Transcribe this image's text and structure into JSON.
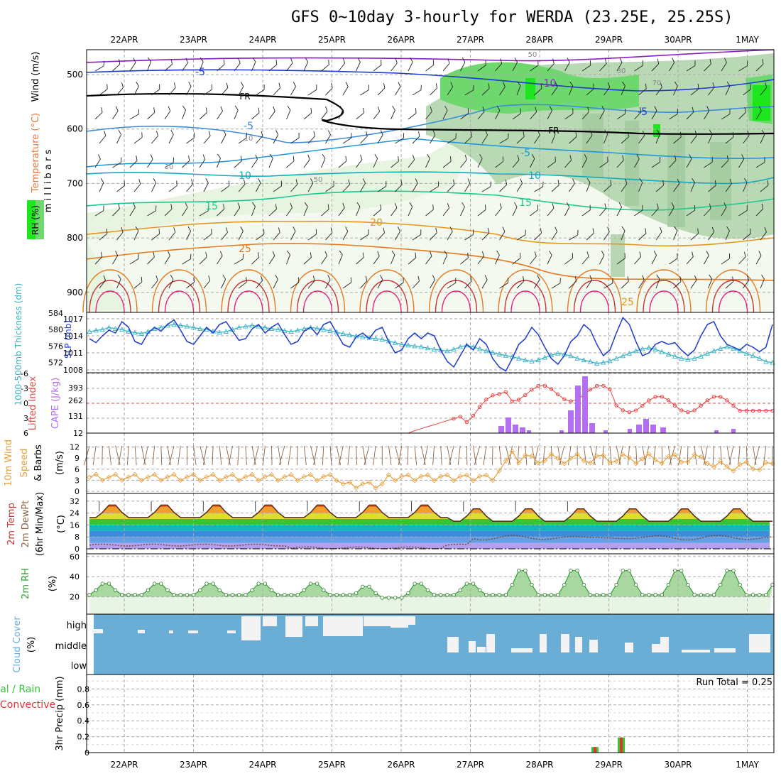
{
  "title": "GFS 0~10day 3-hourly for WERDA (23.25E, 25.25S)",
  "colors": {
    "grid": "#aaaaaa",
    "rh_light": "#e6f4e0",
    "rh_mid": "#b9d9b4",
    "rh_green": "#6ed86e",
    "rh_bright": "#1ee61e",
    "slp": "#1e3ccd",
    "thickness": "#3cb4c8",
    "cape": "#b46ef0",
    "lifted": "#e64646",
    "wind_speed": "#e6a03c",
    "wind_barb": "#8c6446",
    "rh2m": "#32a032",
    "cloud": "#6aaed6",
    "precip_total": "#32c832",
    "precip_conv": "#e63232"
  },
  "x_axis": {
    "date_labels": [
      "22APR",
      "23APR",
      "24APR",
      "25APR",
      "26APR",
      "27APR",
      "28APR",
      "29APR",
      "30APR",
      "1MAY"
    ]
  },
  "panels": {
    "upper_air": {
      "ylabel_wind": "Wind (m/s)",
      "ylabel_temp": "Temperature (°C)",
      "ylabel_rh": "RH (%)",
      "ylabel_mb": "m i l l i b a r s",
      "y_ticks": [
        "500",
        "600",
        "700",
        "800",
        "900"
      ],
      "temp_labels": [
        "-5",
        "-5",
        "-5",
        "-5",
        "10",
        "15",
        "15",
        "20",
        "25",
        "-10",
        "10",
        "25"
      ],
      "freezing_label": "FR",
      "rh_labels": [
        "10",
        "30",
        "50",
        "50",
        "30",
        "70"
      ]
    },
    "slp_thickness": {
      "ylabel_thickness": "1000-500mb Thickness (dm)",
      "ylabel_slp": "SLP (mb)",
      "thickness_ticks": [
        "584",
        "580",
        "576",
        "572"
      ],
      "slp_ticks": [
        "1017",
        "1014",
        "1011",
        "1008"
      ]
    },
    "cape_li": {
      "ylabel_li": "Lifted Index",
      "ylabel_cape": "CAPE (J/kg)",
      "li_ticks": [
        "-6",
        "-3",
        "0",
        "3",
        "6"
      ],
      "cape_ticks": [
        "393",
        "262",
        "131",
        "12"
      ]
    },
    "wind10m": {
      "ylabel_a": "10m Wind",
      "ylabel_b": "Speed",
      "ylabel_c": "& Barbs",
      "ylabel_units": "(m/s)",
      "ticks": [
        "12",
        "9",
        "6",
        "3",
        "0"
      ]
    },
    "temp2m": {
      "ylabel_a": "2m Temp",
      "ylabel_b": "2m DewPt",
      "ylabel_c": "(6hr Min/Max)",
      "ylabel_units": "(°C)",
      "ticks": [
        "32",
        "24",
        "16",
        "8",
        "0"
      ]
    },
    "rh2m": {
      "ylabel": "2m RH",
      "ylabel_units": "(%)",
      "ticks": [
        "60",
        "40",
        "20"
      ]
    },
    "cloud": {
      "ylabel": "Cloud Cover",
      "ylabel_units": "(%)",
      "levels": [
        "high",
        "middle",
        "low"
      ]
    },
    "precip": {
      "ylabel_a": "Total / Rain",
      "ylabel_b": "Convective",
      "ylabel_c": "3hr Precip (mm)",
      "ticks": [
        "0.8",
        "0.6",
        "0.4",
        "0.2",
        "0"
      ],
      "run_total": "Run Total = 0.25"
    }
  },
  "chart_data": {
    "type": "line",
    "x_start": "2022-04-21T12Z",
    "x_step_hours": 3,
    "slp_mb": [
      1013.5,
      1012.8,
      1014,
      1015,
      1014.5,
      1016.5,
      1015.5,
      1013,
      1012.5,
      1014.5,
      1015.5,
      1014.8,
      1016,
      1016.8,
      1015,
      1013,
      1012.5,
      1014,
      1015.5,
      1014.5,
      1016,
      1016.5,
      1014.8,
      1013.2,
      1013.5,
      1015.2,
      1016,
      1014.5,
      1015.5,
      1016.2,
      1014.2,
      1012.5,
      1013,
      1014.8,
      1015.5,
      1014.2,
      1016,
      1016.5,
      1014.5,
      1012.5,
      1012,
      1013.8,
      1014.5,
      1013.5,
      1015,
      1015.5,
      1013,
      1011,
      1011.5,
      1013.5,
      1014.5,
      1013.5,
      1014.5,
      1014,
      1011.5,
      1009.5,
      1008.5,
      1010.5,
      1012.5,
      1011.5,
      1013.5,
      1012.5,
      1010,
      1008.5,
      1007.8,
      1010,
      1012.5,
      1013.5,
      1015.5,
      1014.2,
      1012,
      1010,
      1009,
      1010.5,
      1013,
      1014,
      1016,
      1015,
      1012.5,
      1010.5,
      1011.5,
      1014.5,
      1017.2,
      1016,
      1013,
      1010.5,
      1011,
      1012.5,
      1013,
      1012.5,
      1012.8,
      1011.5,
      1010.5,
      1011.5,
      1014,
      1016,
      1016.5,
      1014,
      1012.5,
      1012,
      1011.5,
      1012.5,
      1012,
      1011.2,
      1012,
      1016
    ],
    "thickness_dm": [
      579.5,
      579.8,
      580,
      580.5,
      580.2,
      580,
      579.5,
      579.3,
      579,
      579.5,
      580.2,
      580.5,
      581,
      581.2,
      581,
      580.8,
      580.5,
      580.2,
      580,
      579.6,
      579.3,
      579.5,
      580,
      580.5,
      580.8,
      581,
      580.8,
      580.5,
      580.2,
      580,
      579.7,
      579.5,
      579.8,
      580.2,
      580.5,
      580.3,
      580,
      579.7,
      579.4,
      579,
      578.7,
      578.4,
      578.2,
      578,
      577.8,
      577.6,
      577.2,
      576.8,
      576.4,
      576.2,
      576,
      575.8,
      575.5,
      575.2,
      575,
      574.8,
      575.2,
      575.8,
      576.2,
      575.8,
      575.3,
      574.8,
      574.4,
      574,
      573.7,
      573.4,
      573,
      572.6,
      572.3,
      572.6,
      573.2,
      573.8,
      574.2,
      574,
      573.6,
      573,
      572.6,
      572.2,
      571.8,
      572,
      572.4,
      573,
      573.6,
      574.2,
      574.8,
      575.3,
      575.6,
      575.2,
      574.6,
      574,
      573.5,
      573,
      572.7,
      573,
      573.5,
      574.2,
      574.8,
      575.4,
      575.8,
      575.4,
      574.8,
      574.2,
      573.6,
      573,
      572.2,
      572
    ]
  }
}
